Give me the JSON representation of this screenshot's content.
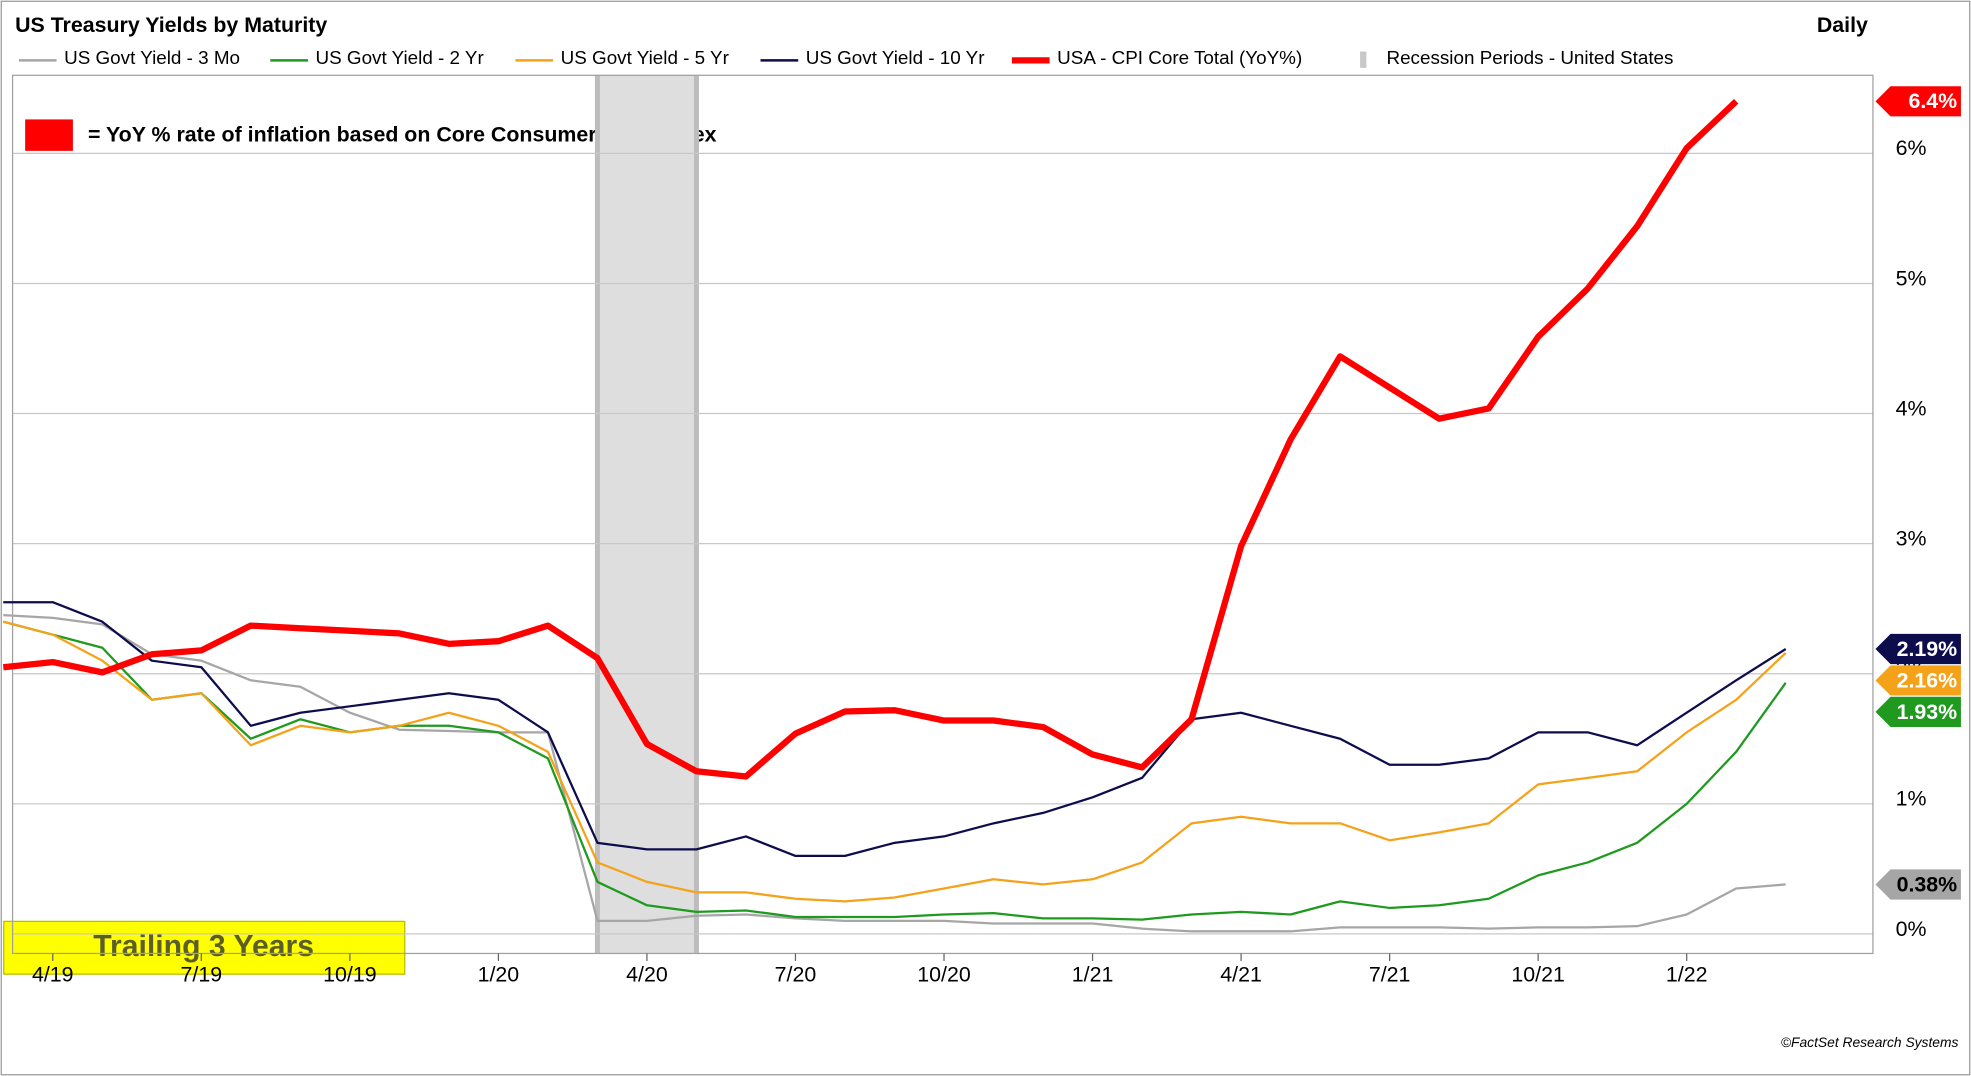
{
  "chart_data": {
    "type": "line",
    "title": "US Treasury Yields by Maturity",
    "period_label": "Daily",
    "annotations": {
      "cpi_note": "= YoY % rate of inflation based on Core Consumer Price Index",
      "trailing": "Trailing 3 Years",
      "source": "©FactSet Research Systems"
    },
    "x": [
      "2019-03",
      "2019-04",
      "2019-05",
      "2019-06",
      "2019-07",
      "2019-08",
      "2019-09",
      "2019-10",
      "2019-11",
      "2019-12",
      "2020-01",
      "2020-02",
      "2020-03",
      "2020-04",
      "2020-05",
      "2020-06",
      "2020-07",
      "2020-08",
      "2020-09",
      "2020-10",
      "2020-11",
      "2020-12",
      "2021-01",
      "2021-02",
      "2021-03",
      "2021-04",
      "2021-05",
      "2021-06",
      "2021-07",
      "2021-08",
      "2021-09",
      "2021-10",
      "2021-11",
      "2021-12",
      "2022-01",
      "2022-02",
      "2022-03"
    ],
    "xlim": [
      "2019-03",
      "2022-04"
    ],
    "xticks": [
      {
        "value": "2019-04",
        "label": "4/19"
      },
      {
        "value": "2019-07",
        "label": "7/19"
      },
      {
        "value": "2019-10",
        "label": "10/19"
      },
      {
        "value": "2020-01",
        "label": "1/20"
      },
      {
        "value": "2020-04",
        "label": "4/20"
      },
      {
        "value": "2020-07",
        "label": "7/20"
      },
      {
        "value": "2020-10",
        "label": "10/20"
      },
      {
        "value": "2021-01",
        "label": "1/21"
      },
      {
        "value": "2021-04",
        "label": "4/21"
      },
      {
        "value": "2021-07",
        "label": "7/21"
      },
      {
        "value": "2021-10",
        "label": "10/21"
      },
      {
        "value": "2022-01",
        "label": "1/22"
      }
    ],
    "ylim": [
      -0.15,
      6.6
    ],
    "yticks": [
      {
        "value": 0,
        "label": "0%"
      },
      {
        "value": 1,
        "label": "1%"
      },
      {
        "value": 2,
        "label": "2%"
      },
      {
        "value": 3,
        "label": "3%"
      },
      {
        "value": 4,
        "label": "4%"
      },
      {
        "value": 5,
        "label": "5%"
      },
      {
        "value": 6,
        "label": "6%"
      }
    ],
    "grid": true,
    "series": [
      {
        "name": "US Govt Yield - 3 Mo",
        "color": "#a6a6a6",
        "values": [
          2.45,
          2.43,
          2.38,
          2.15,
          2.1,
          1.95,
          1.9,
          1.7,
          1.57,
          1.56,
          1.55,
          1.55,
          0.1,
          0.1,
          0.14,
          0.15,
          0.12,
          0.1,
          0.1,
          0.1,
          0.08,
          0.08,
          0.08,
          0.04,
          0.02,
          0.02,
          0.02,
          0.05,
          0.05,
          0.05,
          0.04,
          0.05,
          0.05,
          0.06,
          0.15,
          0.35,
          0.38
        ],
        "value_labels": [
          null,
          null,
          null,
          null,
          null,
          null,
          null,
          null,
          null,
          null,
          null,
          null,
          null,
          null,
          null,
          null,
          null,
          null,
          null,
          null,
          null,
          null,
          null,
          null,
          null,
          null,
          null,
          null,
          null,
          null,
          null,
          null,
          null,
          null,
          null,
          null,
          "0.38%"
        ]
      },
      {
        "name": "US Govt Yield - 2 Yr",
        "color": "#1f9a1f",
        "values": [
          2.4,
          2.3,
          2.2,
          1.8,
          1.85,
          1.5,
          1.65,
          1.55,
          1.6,
          1.6,
          1.55,
          1.35,
          0.4,
          0.22,
          0.17,
          0.18,
          0.13,
          0.13,
          0.13,
          0.15,
          0.16,
          0.12,
          0.12,
          0.11,
          0.15,
          0.17,
          0.15,
          0.25,
          0.2,
          0.22,
          0.27,
          0.45,
          0.55,
          0.7,
          1.0,
          1.4,
          1.93
        ],
        "value_labels": [
          null,
          null,
          null,
          null,
          null,
          null,
          null,
          null,
          null,
          null,
          null,
          null,
          null,
          null,
          null,
          null,
          null,
          null,
          null,
          null,
          null,
          null,
          null,
          null,
          null,
          null,
          null,
          null,
          null,
          null,
          null,
          null,
          null,
          null,
          null,
          null,
          "1.93%"
        ]
      },
      {
        "name": "US Govt Yield - 5 Yr",
        "color": "#f5a21b",
        "values": [
          2.4,
          2.3,
          2.1,
          1.8,
          1.85,
          1.45,
          1.6,
          1.55,
          1.6,
          1.7,
          1.6,
          1.4,
          0.55,
          0.4,
          0.32,
          0.32,
          0.27,
          0.25,
          0.28,
          0.35,
          0.42,
          0.38,
          0.42,
          0.55,
          0.85,
          0.9,
          0.85,
          0.85,
          0.72,
          0.78,
          0.85,
          1.15,
          1.2,
          1.25,
          1.55,
          1.8,
          2.16
        ],
        "value_labels": [
          null,
          null,
          null,
          null,
          null,
          null,
          null,
          null,
          null,
          null,
          null,
          null,
          null,
          null,
          null,
          null,
          null,
          null,
          null,
          null,
          null,
          null,
          null,
          null,
          null,
          null,
          null,
          null,
          null,
          null,
          null,
          null,
          null,
          null,
          null,
          null,
          "2.16%"
        ]
      },
      {
        "name": "US Govt Yield - 10 Yr",
        "color": "#0d0d4d",
        "values": [
          2.55,
          2.55,
          2.4,
          2.1,
          2.05,
          1.6,
          1.7,
          1.75,
          1.8,
          1.85,
          1.8,
          1.55,
          0.7,
          0.65,
          0.65,
          0.75,
          0.6,
          0.6,
          0.7,
          0.75,
          0.85,
          0.93,
          1.05,
          1.2,
          1.65,
          1.7,
          1.6,
          1.5,
          1.3,
          1.3,
          1.35,
          1.55,
          1.55,
          1.45,
          1.7,
          1.95,
          2.19
        ],
        "value_labels": [
          null,
          null,
          null,
          null,
          null,
          null,
          null,
          null,
          null,
          null,
          null,
          null,
          null,
          null,
          null,
          null,
          null,
          null,
          null,
          null,
          null,
          null,
          null,
          null,
          null,
          null,
          null,
          null,
          null,
          null,
          null,
          null,
          null,
          null,
          null,
          null,
          "2.19%"
        ]
      },
      {
        "name": "USA - CPI Core Total (YoY%)",
        "color": "#ff0000",
        "values": [
          2.05,
          2.09,
          2.01,
          2.15,
          2.18,
          2.37,
          2.35,
          2.33,
          2.31,
          2.23,
          2.25,
          2.37,
          2.12,
          1.46,
          1.25,
          1.21,
          1.54,
          1.71,
          1.72,
          1.64,
          1.64,
          1.59,
          1.38,
          1.28,
          1.65,
          2.98,
          3.8,
          4.44,
          4.2,
          3.96,
          4.04,
          4.59,
          4.96,
          5.44,
          6.04,
          6.4,
          null
        ],
        "value_labels": [
          null,
          null,
          null,
          null,
          null,
          null,
          null,
          null,
          null,
          null,
          null,
          null,
          null,
          null,
          null,
          null,
          null,
          null,
          null,
          null,
          null,
          null,
          null,
          null,
          null,
          null,
          null,
          null,
          null,
          null,
          null,
          null,
          null,
          null,
          null,
          "6.4%",
          null
        ]
      }
    ],
    "recession": {
      "name": "Recession Periods - United States",
      "color": "#dedede",
      "start": "2020-03",
      "end": "2020-05"
    }
  }
}
